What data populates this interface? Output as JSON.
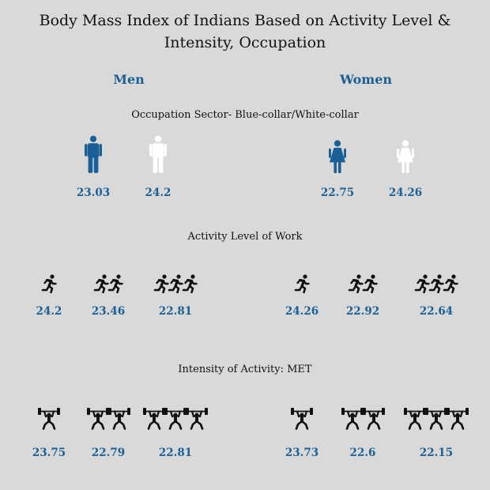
{
  "title_line1": "Body Mass Index of Indians Based on Activity Level &",
  "title_line2": "Intensity, Occupation",
  "men_label": "Men",
  "women_label": "Women",
  "colors": {
    "accent": "#1a5f95",
    "background": "#d9d9d9",
    "blue_collar": "#1a5f95",
    "white_collar": "#ffffff",
    "icons": "#111111"
  },
  "sections": {
    "occupation": "Occupation Sector- Blue-collar/White-collar",
    "activity": "Activity Level of Work",
    "intensity": "Intensity of Activity: MET"
  },
  "chart_data": {
    "type": "table",
    "title": "Body Mass Index of Indians Based on Activity Level & Intensity, Occupation",
    "groups": [
      "Men",
      "Women"
    ],
    "panels": [
      {
        "name": "Occupation Sector- Blue-collar/White-collar",
        "icon": "person-icon",
        "categories": [
          "Blue-collar",
          "White-collar"
        ],
        "series": [
          {
            "name": "Men",
            "values": [
              "23.03",
              "24.2"
            ]
          },
          {
            "name": "Women",
            "values": [
              "22.75",
              "24.26"
            ]
          }
        ]
      },
      {
        "name": "Activity Level of Work",
        "icon": "runner-icon",
        "categories": [
          "1",
          "2",
          "3"
        ],
        "series": [
          {
            "name": "Men",
            "values": [
              "24.2",
              "23.46",
              "22.81"
            ]
          },
          {
            "name": "Women",
            "values": [
              "24.26",
              "22.92",
              "22.64"
            ]
          }
        ]
      },
      {
        "name": "Intensity of Activity: MET",
        "icon": "weightlifter-icon",
        "categories": [
          "1",
          "2",
          "3"
        ],
        "series": [
          {
            "name": "Men",
            "values": [
              "23.75",
              "22.79",
              "22.81"
            ]
          },
          {
            "name": "Women",
            "values": [
              "23.73",
              "22.6",
              "22.15"
            ]
          }
        ]
      }
    ]
  }
}
